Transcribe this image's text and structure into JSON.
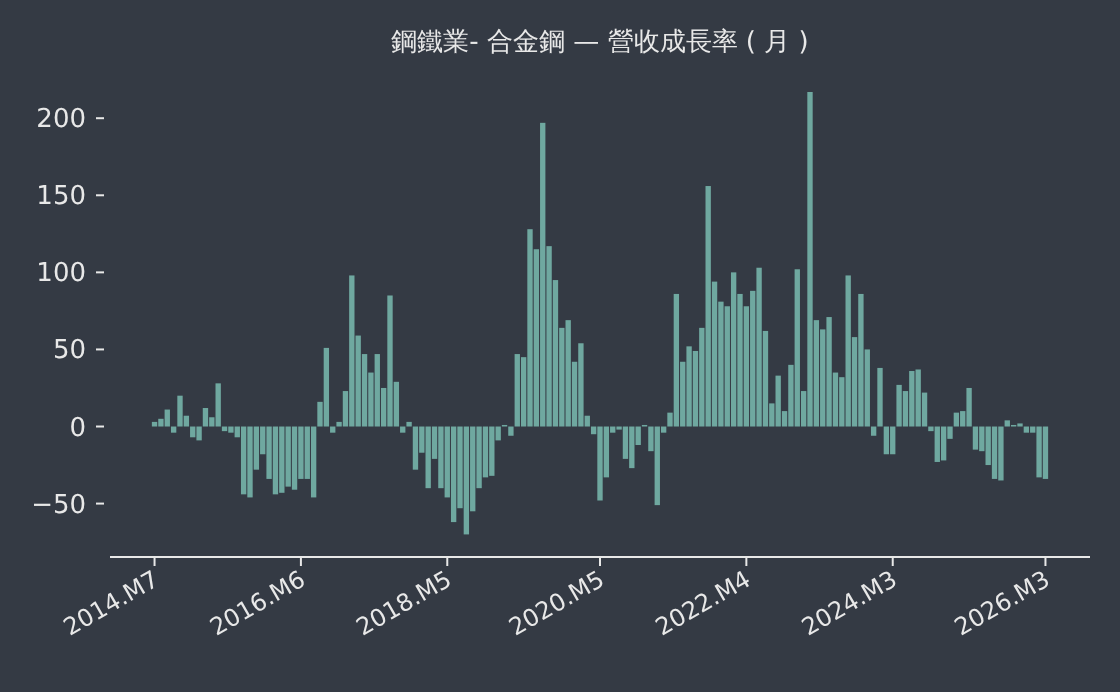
{
  "chart_data": {
    "type": "bar",
    "title": "鋼鐵業- 合金鋼 — 營收成長率 ( 月 )",
    "x": [
      "2014-07",
      "2014-08",
      "2014-09",
      "2014-10",
      "2014-11",
      "2014-12",
      "2015-01",
      "2015-02",
      "2015-03",
      "2015-04",
      "2015-05",
      "2015-06",
      "2015-07",
      "2015-08",
      "2015-09",
      "2015-10",
      "2015-11",
      "2015-12",
      "2016-01",
      "2016-02",
      "2016-03",
      "2016-04",
      "2016-05",
      "2016-06",
      "2016-07",
      "2016-08",
      "2016-09",
      "2016-10",
      "2016-11",
      "2016-12",
      "2017-01",
      "2017-02",
      "2017-03",
      "2017-04",
      "2017-05",
      "2017-06",
      "2017-07",
      "2017-08",
      "2017-09",
      "2017-10",
      "2017-11",
      "2017-12",
      "2018-01",
      "2018-02",
      "2018-03",
      "2018-04",
      "2018-05",
      "2018-06",
      "2018-07",
      "2018-08",
      "2018-09",
      "2018-10",
      "2018-11",
      "2018-12",
      "2019-01",
      "2019-02",
      "2019-03",
      "2019-04",
      "2019-05",
      "2019-06",
      "2019-07",
      "2019-08",
      "2019-09",
      "2019-10",
      "2019-11",
      "2019-12",
      "2020-01",
      "2020-02",
      "2020-03",
      "2020-04",
      "2020-05",
      "2020-06",
      "2020-07",
      "2020-08",
      "2020-09",
      "2020-10",
      "2020-11",
      "2020-12",
      "2021-01",
      "2021-02",
      "2021-03",
      "2021-04",
      "2021-05",
      "2021-06",
      "2021-07",
      "2021-08",
      "2021-09",
      "2021-10",
      "2021-11",
      "2021-12",
      "2022-01",
      "2022-02",
      "2022-03",
      "2022-04",
      "2022-05",
      "2022-06",
      "2022-07",
      "2022-08",
      "2022-09",
      "2022-10",
      "2022-11",
      "2022-12",
      "2023-01",
      "2023-02",
      "2023-03",
      "2023-04",
      "2023-05",
      "2023-06",
      "2023-07",
      "2023-08",
      "2023-09",
      "2023-10",
      "2023-11",
      "2023-12",
      "2024-01",
      "2024-02",
      "2024-03",
      "2024-04",
      "2024-05",
      "2024-06",
      "2024-07",
      "2024-08",
      "2024-09",
      "2024-10",
      "2024-11",
      "2024-12",
      "2025-01",
      "2025-02",
      "2025-03",
      "2025-04",
      "2025-05",
      "2025-06",
      "2025-07",
      "2025-08",
      "2025-09",
      "2025-10",
      "2025-11",
      "2025-12",
      "2026-01",
      "2026-02",
      "2026-03"
    ],
    "values": [
      3,
      5,
      11,
      -4,
      20,
      7,
      -7,
      -9,
      12,
      6,
      28,
      -3,
      -4,
      -7,
      -44,
      -46,
      -28,
      -18,
      -34,
      -44,
      -43,
      -39,
      -41,
      -34,
      -34,
      -46,
      16,
      51,
      -4,
      3,
      23,
      98,
      59,
      47,
      35,
      47,
      25,
      85,
      29,
      -4,
      3,
      -28,
      -17,
      -40,
      -21,
      -40,
      -46,
      -62,
      -53,
      -70,
      -55,
      -40,
      -33,
      -32,
      -9,
      1,
      -6,
      47,
      45,
      128,
      115,
      197,
      117,
      95,
      64,
      69,
      42,
      54,
      7,
      -5,
      -48,
      -33,
      -4,
      -2,
      -21,
      -27,
      -12,
      1,
      -16,
      -51,
      -4,
      9,
      86,
      42,
      52,
      49,
      64,
      156,
      94,
      81,
      78,
      100,
      86,
      78,
      88,
      103,
      62,
      15,
      33,
      10,
      40,
      102,
      23,
      217,
      69,
      63,
      71,
      35,
      32,
      98,
      58,
      86,
      50,
      -6,
      38,
      -18,
      -18,
      27,
      23,
      36,
      37,
      22,
      -3,
      -23,
      -22,
      -8,
      9,
      10,
      25,
      -15,
      -16,
      -25,
      -34,
      -35,
      4,
      1,
      2,
      -4,
      -4,
      -33,
      -34
    ],
    "color": "#6fa8a0",
    "xlim": [
      "2013-12",
      "2026-10"
    ],
    "xticks": [
      {
        "value": "2014-07",
        "label": "2014.M7"
      },
      {
        "value": "2016-06",
        "label": "2016.M6"
      },
      {
        "value": "2018-05",
        "label": "2018.M5"
      },
      {
        "value": "2020-05",
        "label": "2020.M5"
      },
      {
        "value": "2022-04",
        "label": "2022.M4"
      },
      {
        "value": "2024-03",
        "label": "2024.M3"
      },
      {
        "value": "2026-03",
        "label": "2026.M3"
      }
    ],
    "ylim": [
      -84,
      217
    ],
    "yticks": [
      -50,
      0,
      50,
      100,
      150,
      200
    ]
  }
}
